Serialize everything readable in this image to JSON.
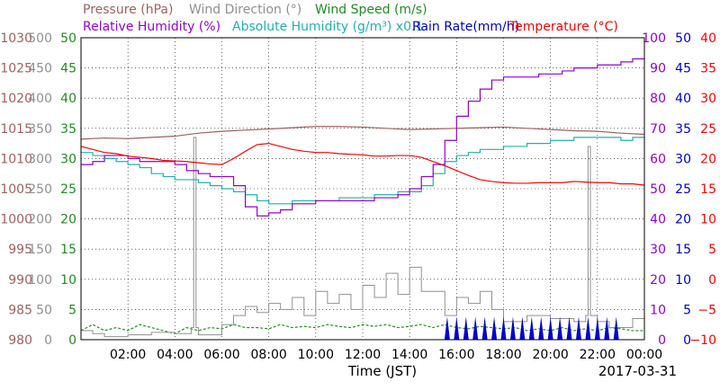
{
  "chart_data": {
    "type": "line",
    "legend": [
      {
        "label": "Pressure (hPa)",
        "color": "#a06060"
      },
      {
        "label": "Wind Direction (°)",
        "color": "#909090"
      },
      {
        "label": "Wind Speed (m/s)",
        "color": "#228b22"
      },
      {
        "label": "Relative Humidity (%)",
        "color": "#9400d3"
      },
      {
        "label": "Absolute Humidity (g/m³) x0.1",
        "color": "#20b2aa"
      },
      {
        "label": "Rain Rate(mm/h)",
        "color": "#0000cd"
      },
      {
        "label": "Temperature (°C)",
        "color": "#ff0000"
      }
    ],
    "xlabel": "Time (JST)",
    "date": "2017-03-31",
    "xlim": [
      0,
      24
    ],
    "x_ticks": [
      "02:00",
      "04:00",
      "06:00",
      "08:00",
      "10:00",
      "12:00",
      "14:00",
      "16:00",
      "18:00",
      "20:00",
      "22:00",
      "00:00"
    ],
    "grid": true,
    "axes": {
      "pressure": {
        "ticks": [
          "1030",
          "1025",
          "1020",
          "1015",
          "1010",
          "1005",
          "1000",
          "995",
          "990",
          "985",
          "980"
        ],
        "ylim": [
          980,
          1030
        ],
        "color": "#a06060"
      },
      "wind_direction": {
        "ticks": [
          "500",
          "450",
          "400",
          "350",
          "300",
          "250",
          "200",
          "150",
          "100",
          "50",
          "0"
        ],
        "ylim": [
          0,
          500
        ],
        "color": "#909090"
      },
      "wind_speed": {
        "ticks": [
          "50",
          "45",
          "40",
          "35",
          "30",
          "25",
          "20",
          "15",
          "10",
          "5",
          "0"
        ],
        "ylim": [
          0,
          50
        ],
        "color": "#228b22"
      },
      "humidity": {
        "ticks": [
          "100",
          "90",
          "80",
          "70",
          "60",
          "50",
          "40",
          "30",
          "20",
          "10",
          "0"
        ],
        "ylim": [
          0,
          100
        ],
        "color": "#9400d3"
      },
      "rain_rate": {
        "ticks": [
          "50",
          "45",
          "40",
          "35",
          "30",
          "25",
          "20",
          "15",
          "10",
          "5",
          "0"
        ],
        "ylim": [
          0,
          50
        ],
        "color": "#0000cd"
      },
      "temperature": {
        "ticks": [
          "40",
          "35",
          "30",
          "25",
          "20",
          "15",
          "10",
          "5",
          "0",
          "−5",
          "−10"
        ],
        "ylim": [
          -10,
          40
        ],
        "color": "#ff0000"
      }
    },
    "series": [
      {
        "name": "Pressure",
        "axis": "pressure",
        "color": "#a06060",
        "x": [
          0,
          1,
          2,
          3,
          4,
          5,
          6,
          7,
          8,
          9,
          10,
          11,
          12,
          13,
          14,
          15,
          16,
          17,
          18,
          19,
          20,
          21,
          22,
          23,
          24
        ],
        "y": [
          1013.2,
          1013.4,
          1013.3,
          1013.5,
          1013.7,
          1014.2,
          1014.5,
          1014.7,
          1014.9,
          1015.1,
          1015.3,
          1015.3,
          1015.2,
          1015.0,
          1014.8,
          1014.9,
          1015.0,
          1015.1,
          1015.2,
          1015.0,
          1014.8,
          1014.6,
          1014.5,
          1014.2,
          1014.0
        ]
      },
      {
        "name": "Wind Direction",
        "axis": "wind_direction",
        "color": "#909090",
        "x": [
          0,
          0.5,
          1,
          2,
          3,
          4,
          4.7,
          4.8,
          4.9,
          5,
          6,
          6.5,
          7,
          7.5,
          8,
          8.5,
          9,
          9.5,
          10,
          10.5,
          11,
          11.5,
          12,
          12.5,
          13,
          13.5,
          14,
          14.5,
          15,
          15.5,
          16,
          16.5,
          17,
          17.5,
          18,
          19,
          20,
          21,
          21.5,
          21.6,
          21.7,
          22,
          22.5,
          23,
          23.5,
          24
        ],
        "y": [
          15,
          10,
          5,
          8,
          12,
          10,
          20,
          335,
          20,
          8,
          25,
          40,
          55,
          45,
          60,
          50,
          70,
          40,
          80,
          60,
          75,
          50,
          90,
          70,
          110,
          75,
          120,
          80,
          80,
          40,
          70,
          60,
          80,
          50,
          30,
          40,
          35,
          30,
          40,
          320,
          40,
          30,
          20,
          20,
          35,
          15
        ]
      },
      {
        "name": "Wind Speed",
        "axis": "wind_speed",
        "color": "#228b22",
        "x": [
          0,
          0.5,
          1,
          1.5,
          2,
          2.5,
          3,
          3.5,
          4,
          4.5,
          5,
          5.5,
          6,
          6.5,
          7,
          7.5,
          8,
          8.5,
          9,
          9.5,
          10,
          10.5,
          11,
          11.5,
          12,
          12.5,
          13,
          13.5,
          14,
          14.5,
          15,
          15.5,
          16,
          16.5,
          17,
          17.5,
          18,
          18.5,
          19,
          19.5,
          20,
          20.5,
          21,
          21.5,
          22,
          22.5,
          23,
          23.5,
          24
        ],
        "y": [
          1.5,
          2.5,
          1.5,
          2,
          1.5,
          2.5,
          2,
          1.5,
          1,
          2,
          1.5,
          2,
          1.8,
          2.5,
          2,
          2,
          1.8,
          2.5,
          2,
          2.2,
          2,
          2.5,
          2.2,
          2,
          2.5,
          2.2,
          2.5,
          2,
          2.2,
          2.5,
          2,
          2.5,
          2,
          1.8,
          2.2,
          2,
          1.8,
          2,
          1.5,
          1.8,
          1.5,
          2,
          1.5,
          1.8,
          1.5,
          2,
          1.8,
          1.5,
          1.5
        ]
      },
      {
        "name": "Relative Humidity",
        "axis": "humidity",
        "color": "#9400d3",
        "x": [
          0,
          0.5,
          1,
          1.5,
          2,
          2.5,
          3,
          3.5,
          4,
          4.5,
          5,
          5.5,
          6,
          6.5,
          7,
          7.5,
          8,
          8.5,
          9,
          9.5,
          10,
          10.5,
          11,
          11.5,
          12,
          12.5,
          13,
          13.5,
          14,
          14.5,
          15,
          15.5,
          16,
          16.5,
          17,
          17.5,
          18,
          18.5,
          19,
          19.5,
          20,
          20.5,
          21,
          21.5,
          22,
          22.5,
          23,
          23.5,
          24
        ],
        "y": [
          58,
          59,
          61,
          61,
          60,
          59,
          59,
          59,
          58,
          56,
          55,
          54,
          54,
          51,
          44,
          41,
          42,
          43,
          45,
          45,
          46,
          46,
          46,
          46,
          46,
          47,
          47,
          48,
          50,
          54,
          58,
          66,
          74,
          79,
          83,
          86,
          87,
          87,
          87,
          88,
          88,
          89,
          90,
          90,
          91,
          91,
          92,
          93,
          93
        ]
      },
      {
        "name": "Absolute Humidity x0.1",
        "axis": "humidity",
        "color": "#20b2aa",
        "x": [
          0,
          0.5,
          1,
          1.5,
          2,
          2.5,
          3,
          3.5,
          4,
          4.5,
          5,
          5.5,
          6,
          6.5,
          7,
          7.5,
          8,
          8.5,
          9,
          9.5,
          10,
          10.5,
          11,
          11.5,
          12,
          12.5,
          13,
          13.5,
          14,
          14.5,
          15,
          15.5,
          16,
          16.5,
          17,
          17.5,
          18,
          18.5,
          19,
          19.5,
          20,
          20.5,
          21,
          21.5,
          22,
          22.5,
          23,
          23.5,
          24
        ],
        "y": [
          62,
          61,
          60,
          59,
          58,
          57,
          55,
          54,
          53,
          53,
          52,
          51,
          50,
          49,
          48,
          46,
          45,
          45,
          46,
          46,
          46,
          46,
          47,
          47,
          47,
          48,
          48,
          49,
          49,
          51,
          55,
          59,
          61,
          62,
          63,
          63,
          64,
          64,
          65,
          65,
          66,
          66,
          67,
          67,
          67,
          67,
          66,
          67,
          67
        ]
      },
      {
        "name": "Rain Rate",
        "axis": "rain_rate",
        "color": "#0000cd",
        "x": [
          0,
          15.5,
          15.6,
          15.8,
          16,
          16.2,
          16.4,
          16.6,
          16.8,
          17,
          17.2,
          17.4,
          17.6,
          17.8,
          18,
          18.2,
          18.4,
          18.6,
          18.8,
          19,
          19.2,
          19.4,
          19.6,
          19.8,
          20,
          20.2,
          20.4,
          20.6,
          20.8,
          21,
          21.2,
          21.4,
          21.6,
          21.8,
          22,
          22.2,
          22.4,
          22.6,
          22.8,
          23,
          24
        ],
        "y": [
          0,
          0,
          2,
          0,
          2,
          0,
          2,
          0,
          2,
          0,
          2,
          0,
          2,
          0,
          2,
          0,
          2,
          0,
          2,
          0,
          2,
          0,
          2,
          0,
          2,
          0,
          2,
          0,
          2,
          0,
          2,
          0,
          2,
          0,
          2,
          0,
          2,
          0,
          2,
          0,
          0
        ]
      },
      {
        "name": "Temperature",
        "axis": "temperature",
        "color": "#ff0000",
        "x": [
          0,
          0.5,
          1,
          1.5,
          2,
          2.5,
          3,
          3.5,
          4,
          4.5,
          5,
          5.5,
          6,
          6.5,
          7,
          7.5,
          8,
          8.5,
          9,
          9.5,
          10,
          10.5,
          11,
          11.5,
          12,
          12.5,
          13,
          13.5,
          14,
          14.5,
          15,
          15.5,
          16,
          16.5,
          17,
          17.5,
          18,
          18.5,
          19,
          19.5,
          20,
          20.5,
          21,
          21.5,
          22,
          22.5,
          23,
          23.5,
          24
        ],
        "y": [
          22,
          21.5,
          21,
          20.8,
          20.4,
          20.2,
          20,
          19.7,
          19.6,
          19.5,
          19.3,
          19.1,
          19,
          20,
          21.2,
          22.3,
          22.5,
          22,
          21.5,
          21.2,
          21.0,
          21.0,
          20.8,
          20.7,
          20.6,
          20.4,
          20.4,
          20.5,
          20.5,
          20.2,
          19.5,
          18.8,
          18,
          17.2,
          16.5,
          16.2,
          16.0,
          15.9,
          15.9,
          16.0,
          16.0,
          16.0,
          16.2,
          16.1,
          16.0,
          16.0,
          15.8,
          15.8,
          15.6
        ]
      }
    ]
  }
}
